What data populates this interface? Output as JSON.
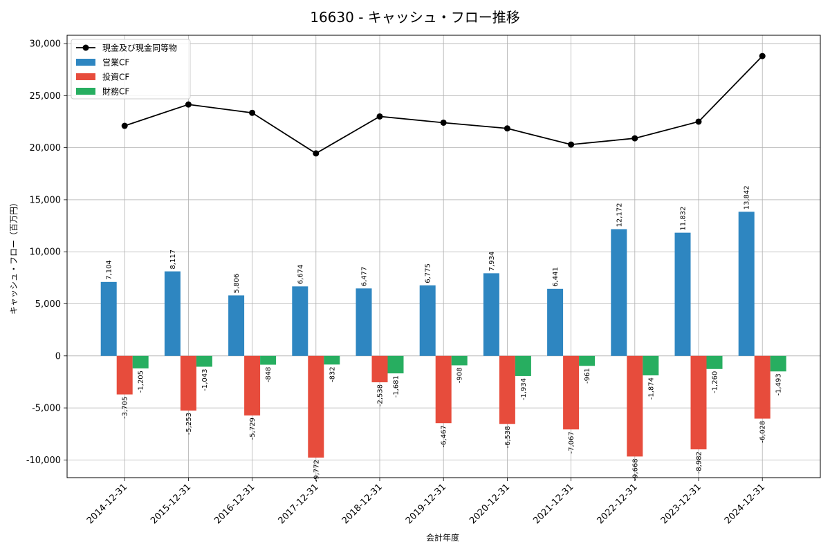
{
  "chart_data": {
    "type": "bar+line",
    "title": "16630 - キャッシュ・フロー推移",
    "xlabel": "会計年度",
    "ylabel": "キャッシュ・フロー（百万円）",
    "categories": [
      "2014-12-31",
      "2015-12-31",
      "2016-12-31",
      "2017-12-31",
      "2018-12-31",
      "2019-12-31",
      "2020-12-31",
      "2021-12-31",
      "2022-12-31",
      "2023-12-31",
      "2024-12-31"
    ],
    "ylim": [
      -11700,
      30800
    ],
    "yticks": [
      -10000,
      -5000,
      0,
      5000,
      10000,
      15000,
      20000,
      25000,
      30000
    ],
    "ytick_labels": [
      "-10,000",
      "-5,000",
      "0",
      "5,000",
      "10,000",
      "15,000",
      "20,000",
      "25,000",
      "30,000"
    ],
    "grid": true,
    "legend_position": "top-left",
    "line_series": {
      "name": "現金及び現金同等物",
      "color": "#000000",
      "values": [
        22100,
        24150,
        23350,
        19450,
        23000,
        22400,
        21850,
        20300,
        20900,
        22500,
        28800
      ]
    },
    "series": [
      {
        "name": "営業CF",
        "color": "#2e86c1",
        "values": [
          7104,
          8117,
          5806,
          6674,
          6477,
          6775,
          7934,
          6441,
          12172,
          11832,
          13842
        ],
        "labels": [
          "7,104",
          "8,117",
          "5,806",
          "6,674",
          "6,477",
          "6,775",
          "7,934",
          "6,441",
          "12,172",
          "11,832",
          "13,842"
        ]
      },
      {
        "name": "投資CF",
        "color": "#e74c3c",
        "values": [
          -3705,
          -5253,
          -5729,
          -9772,
          -2538,
          -6467,
          -6538,
          -7067,
          -9668,
          -8982,
          -6028
        ],
        "labels": [
          "-3,705",
          "-5,253",
          "-5,729",
          "-9,772",
          "-2,538",
          "-6,467",
          "-6,538",
          "-7,067",
          "-9,668",
          "-8,982",
          "-6,028"
        ]
      },
      {
        "name": "財務CF",
        "color": "#27ae60",
        "values": [
          -1205,
          -1043,
          -848,
          -832,
          -1681,
          -908,
          -1934,
          -961,
          -1874,
          -1260,
          -1493
        ],
        "labels": [
          "-1,205",
          "-1,043",
          "-848",
          "-832",
          "-1,681",
          "-908",
          "-1,934",
          "-961",
          "-1,874",
          "-1,260",
          "-1,493"
        ]
      }
    ]
  }
}
